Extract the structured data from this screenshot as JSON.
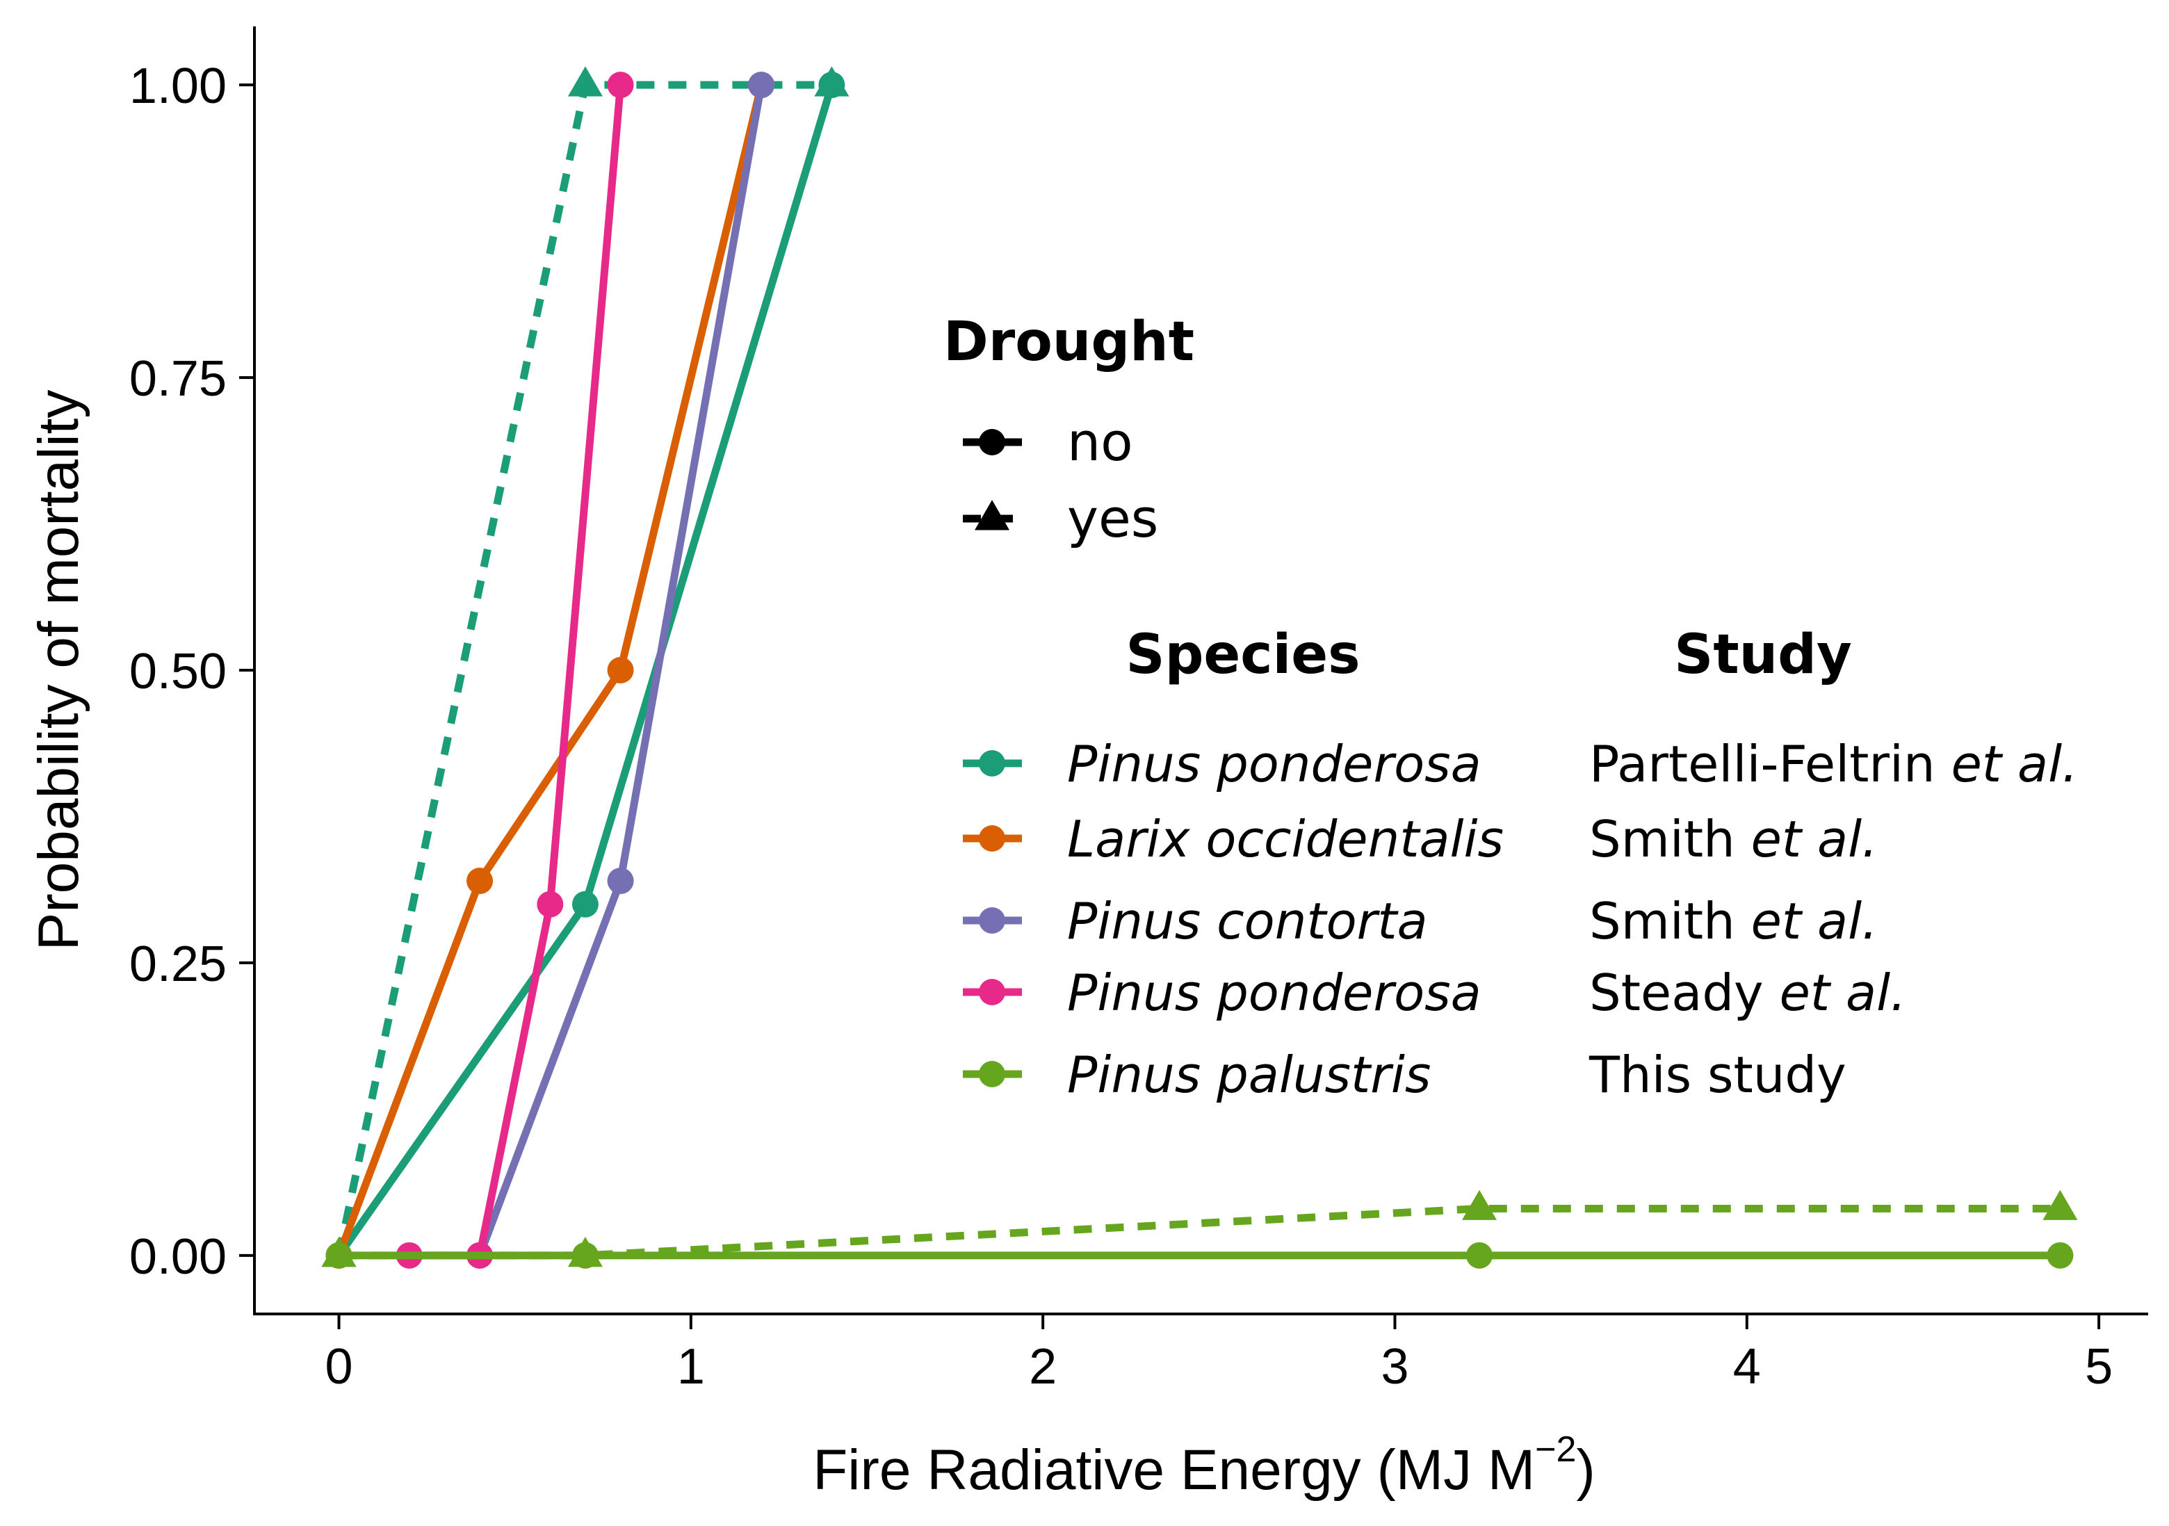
{
  "chart_data": {
    "type": "line",
    "title": "",
    "xlabel": "Fire Radiative Energy  (MJ  M",
    "xlabel_superscript": "−2",
    "xlabel_close": ")",
    "ylabel": "Probability of mortality",
    "xlim": [
      -0.24,
      5.14
    ],
    "ylim": [
      -0.05,
      1.05
    ],
    "x_ticks": [
      0,
      1,
      2,
      3,
      4,
      5
    ],
    "x_tick_labels": [
      "0",
      "1",
      "2",
      "3",
      "4",
      "5"
    ],
    "y_ticks": [
      0,
      0.25,
      0.5,
      0.75,
      1.0
    ],
    "y_tick_labels": [
      "0.00",
      "0.25",
      "0.50",
      "0.75",
      "1.00"
    ],
    "grid": false,
    "legend_placement": "right",
    "legend": {
      "drought_title": "Drought",
      "drought_entries": [
        {
          "label": "no",
          "shape": "circle",
          "linestyle": "solid"
        },
        {
          "label": "yes",
          "shape": "triangle",
          "linestyle": "dashed"
        }
      ],
      "species_header": "Species",
      "study_header": "Study",
      "entries": [
        {
          "species": "Pinus ponderosa",
          "study_main": "Partelli-Feltrin ",
          "study_italic": "et al.",
          "color": "#1b9e77"
        },
        {
          "species": "Larix occidentalis",
          "study_main": "Smith ",
          "study_italic": "et al.",
          "color": "#d95f02"
        },
        {
          "species": "Pinus contorta",
          "study_main": "Smith ",
          "study_italic": "et al.",
          "color": "#7570b3"
        },
        {
          "species": "Pinus ponderosa",
          "study_main": "Steady ",
          "study_italic": "et al.",
          "color": "#e7298a"
        },
        {
          "species": "Pinus palustris",
          "study_main": "This study",
          "study_italic": "",
          "color": "#66a61e"
        }
      ]
    },
    "series": [
      {
        "species": "Pinus ponderosa",
        "study": "Partelli-Feltrin et al.",
        "drought": "no",
        "color": "#1b9e77",
        "x": [
          0,
          0.7,
          1.4
        ],
        "y": [
          0,
          0.3,
          1.0
        ]
      },
      {
        "species": "Pinus ponderosa",
        "study": "Partelli-Feltrin et al.",
        "drought": "yes",
        "color": "#1b9e77",
        "x": [
          0,
          0.7,
          1.4
        ],
        "y": [
          0,
          1.0,
          1.0
        ]
      },
      {
        "species": "Larix occidentalis",
        "study": "Smith et al.",
        "drought": "no",
        "color": "#d95f02",
        "x": [
          0,
          0.4,
          0.8,
          1.2
        ],
        "y": [
          0,
          0.32,
          0.5,
          1.0
        ]
      },
      {
        "species": "Pinus contorta",
        "study": "Smith et al.",
        "drought": "no",
        "color": "#7570b3",
        "x": [
          0.4,
          0.8,
          1.2
        ],
        "y": [
          0,
          0.32,
          1.0
        ]
      },
      {
        "species": "Pinus ponderosa",
        "study": "Steady et al.",
        "drought": "no",
        "color": "#e7298a",
        "x": [
          0.2,
          0.4,
          0.6,
          0.8
        ],
        "y": [
          0,
          0,
          0.3,
          1.0
        ]
      },
      {
        "species": "Pinus palustris",
        "study": "This study",
        "drought": "yes",
        "color": "#66a61e",
        "x": [
          0,
          0.7,
          3.24,
          4.89
        ],
        "y": [
          0,
          0,
          0.04,
          0.04
        ]
      },
      {
        "species": "Pinus palustris",
        "study": "This study",
        "drought": "no",
        "color": "#66a61e",
        "x": [
          0,
          0.7,
          3.24,
          4.89
        ],
        "y": [
          0,
          0,
          0,
          0
        ]
      }
    ]
  }
}
